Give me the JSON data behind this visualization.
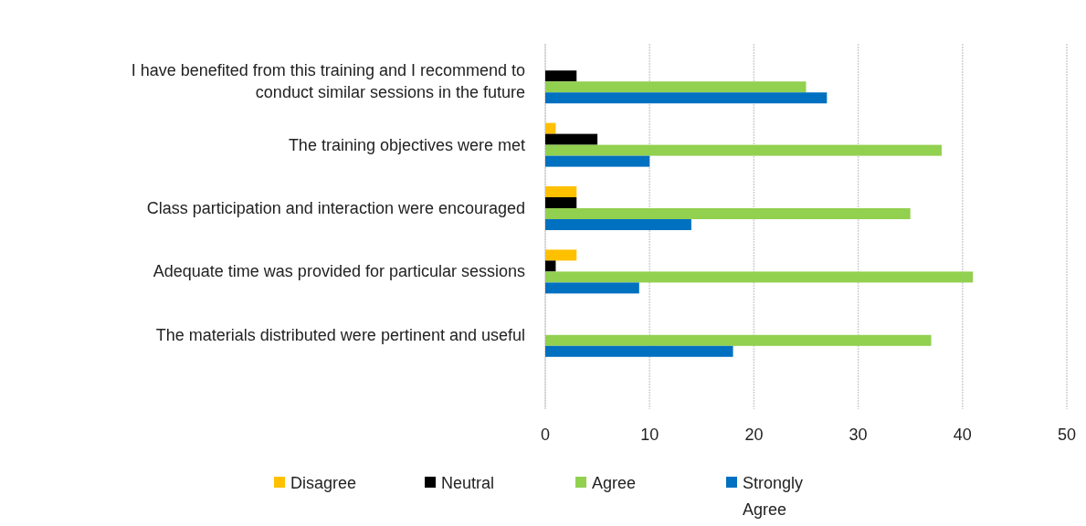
{
  "chart_data": {
    "type": "bar",
    "orientation": "horizontal",
    "categories": [
      "I have benefited from this training and I recommend to conduct similar sessions in the future",
      "The training objectives were met",
      "Class participation and interaction were encouraged",
      "Adequate time was provided for particular sessions",
      "The materials distributed were pertinent and useful"
    ],
    "series": [
      {
        "name": "Disagree",
        "color": "#ffc000",
        "values": [
          0,
          1,
          3,
          3,
          0
        ]
      },
      {
        "name": "Neutral",
        "color": "#000000",
        "values": [
          3,
          5,
          3,
          1,
          0
        ]
      },
      {
        "name": "Agree",
        "color": "#92d050",
        "values": [
          25,
          38,
          35,
          41,
          37
        ]
      },
      {
        "name": "Strongly Agree",
        "color": "#0070c0",
        "values": [
          27,
          10,
          14,
          9,
          18
        ]
      }
    ],
    "xlim": [
      0,
      50
    ],
    "xticks": [
      0,
      10,
      20,
      30,
      40,
      50
    ],
    "grid": "x",
    "legend": "bottom"
  }
}
